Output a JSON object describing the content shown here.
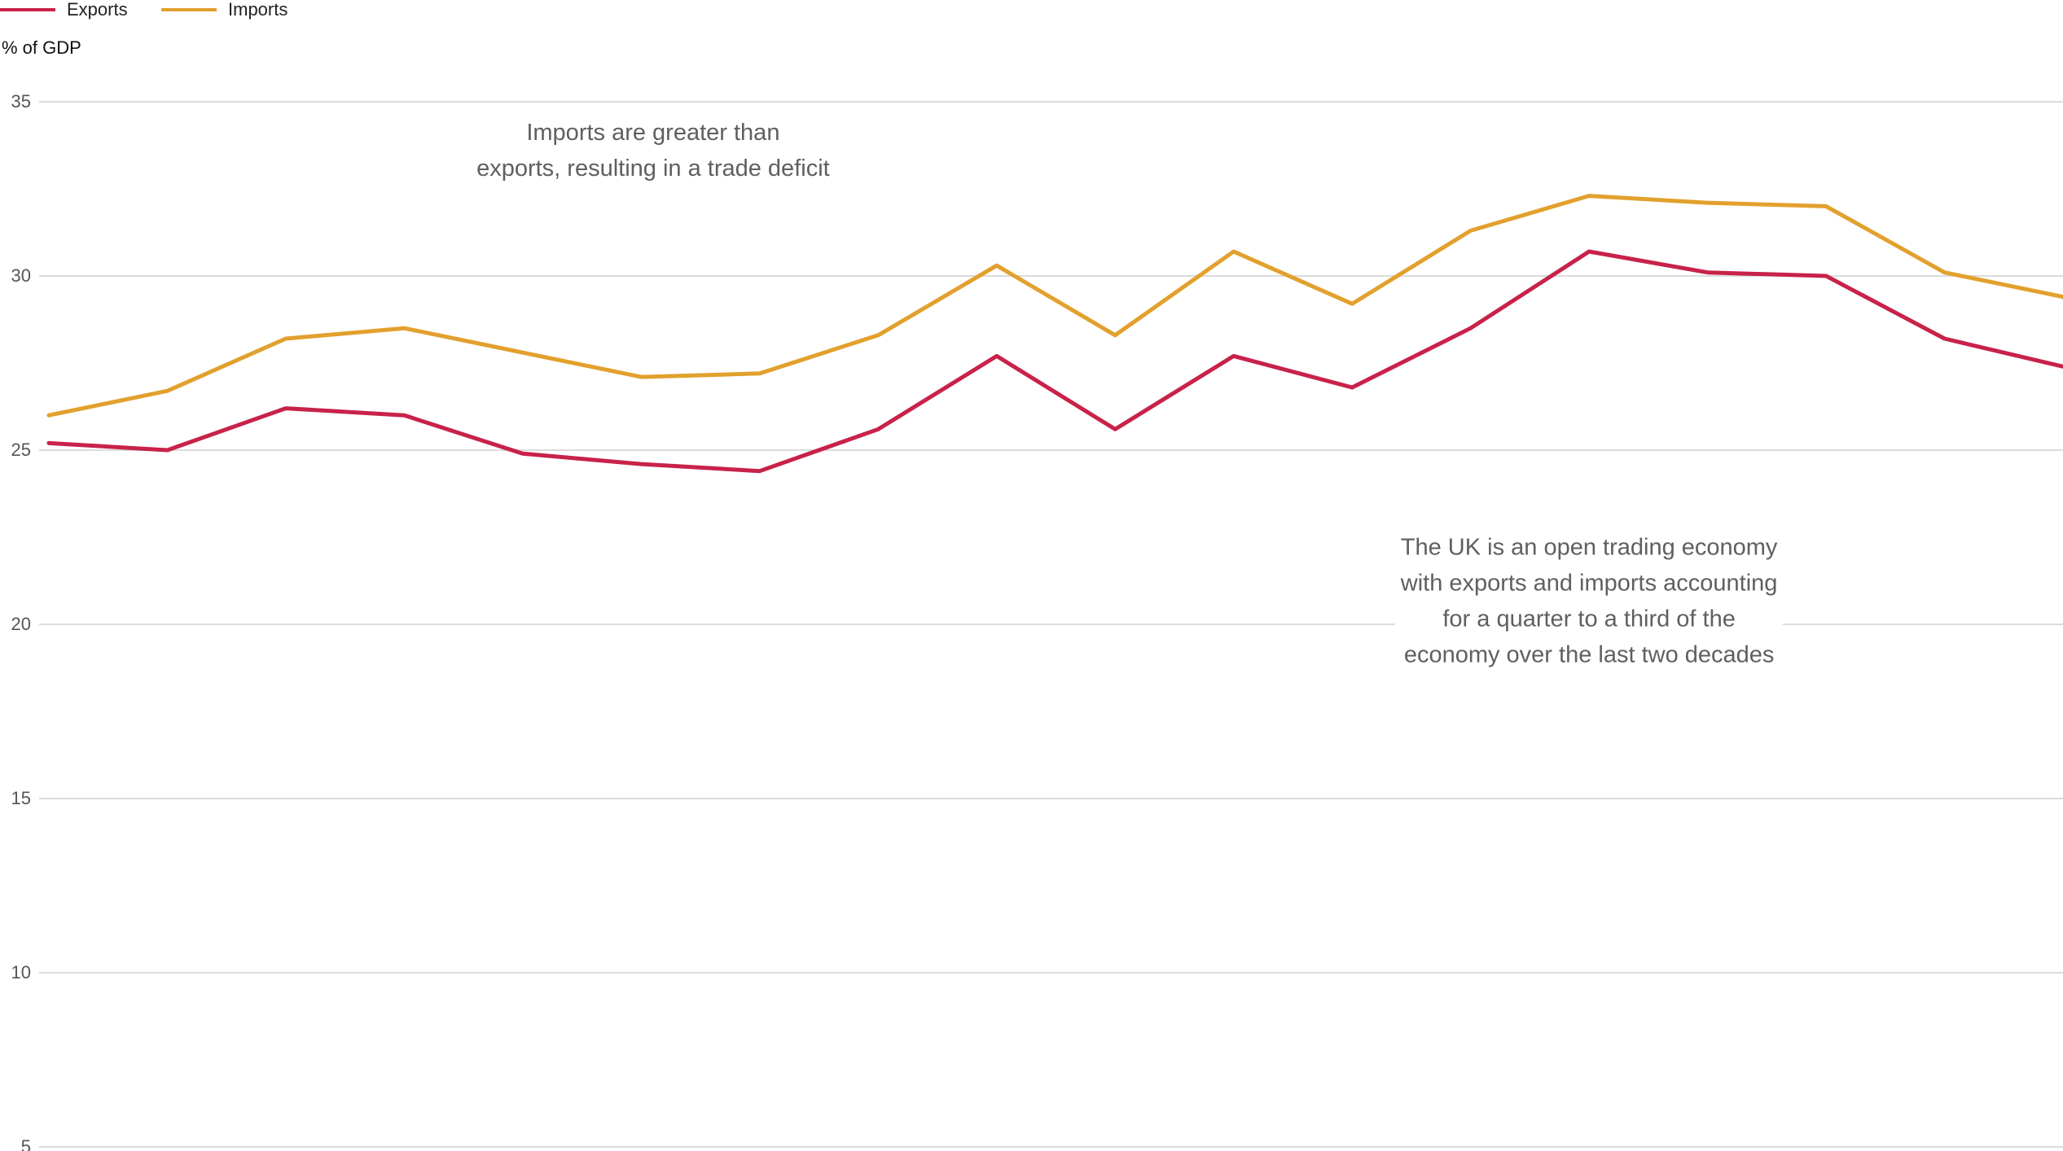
{
  "chart_data": {
    "type": "line",
    "title": "",
    "xlabel": "",
    "ylabel": "% of GDP",
    "ylim": [
      5,
      35
    ],
    "yticks": [
      5,
      10,
      15,
      20,
      25,
      30,
      35
    ],
    "grid": true,
    "legend_placement": "top-left",
    "x": [
      1,
      2,
      3,
      4,
      5,
      6,
      7,
      8,
      9,
      10,
      11,
      12,
      13,
      14,
      15,
      16,
      17,
      18
    ],
    "series": [
      {
        "name": "Exports",
        "color": "#c8224a",
        "values": [
          25.2,
          25.0,
          26.2,
          26.0,
          24.9,
          24.6,
          24.4,
          25.6,
          27.7,
          25.6,
          27.7,
          26.8,
          28.5,
          30.7,
          30.1,
          30.0,
          28.2,
          27.4
        ]
      },
      {
        "name": "Imports",
        "color": "#e2a02d",
        "values": [
          26.0,
          26.7,
          28.2,
          28.5,
          27.8,
          27.1,
          27.2,
          28.3,
          30.3,
          28.3,
          30.7,
          29.2,
          31.3,
          32.3,
          32.1,
          32.0,
          30.1,
          29.4
        ]
      }
    ],
    "annotations": [
      {
        "id": "deficit-annotation",
        "lines": [
          "Imports are greater than",
          "exports, resulting in a trade deficit"
        ],
        "x": 6.1,
        "y": 33.9
      },
      {
        "id": "open-economy-annotation",
        "lines": [
          "The UK is an open trading economy",
          "with exports and imports accounting",
          "for a quarter to a third of the",
          "economy over the last two decades"
        ],
        "x": 14.0,
        "y": 22.0
      }
    ]
  }
}
